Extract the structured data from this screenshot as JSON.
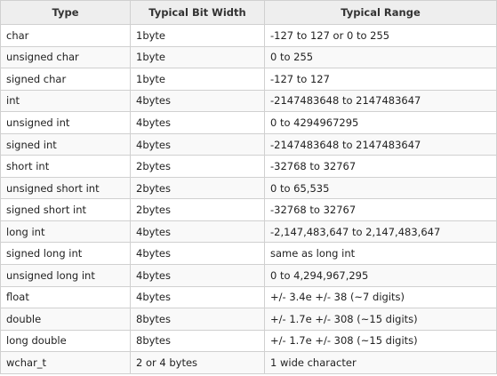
{
  "table": {
    "headers": [
      "Type",
      "Typical Bit Width",
      "Typical Range"
    ],
    "rows": [
      [
        "char",
        "1byte",
        "-127 to 127 or 0 to 255"
      ],
      [
        "unsigned char",
        "1byte",
        "0 to 255"
      ],
      [
        "signed char",
        "1byte",
        "-127 to 127"
      ],
      [
        "int",
        "4bytes",
        "-2147483648 to 2147483647"
      ],
      [
        "unsigned int",
        "4bytes",
        "0 to 4294967295"
      ],
      [
        "signed int",
        "4bytes",
        "-2147483648 to 2147483647"
      ],
      [
        "short int",
        "2bytes",
        "-32768 to 32767"
      ],
      [
        "unsigned short int",
        "2bytes",
        "0 to 65,535"
      ],
      [
        "signed short int",
        "2bytes",
        "-32768 to 32767"
      ],
      [
        "long int",
        "4bytes",
        "-2,147,483,647 to 2,147,483,647"
      ],
      [
        "signed long int",
        "4bytes",
        "same as long int"
      ],
      [
        "unsigned long int",
        "4bytes",
        "0 to 4,294,967,295"
      ],
      [
        "float",
        "4bytes",
        "+/- 3.4e +/- 38 (~7 digits)"
      ],
      [
        "double",
        "8bytes",
        "+/- 1.7e +/- 308 (~15 digits)"
      ],
      [
        "long double",
        "8bytes",
        "+/- 1.7e +/- 308 (~15 digits)"
      ],
      [
        "wchar_t",
        "2 or 4 bytes",
        "1 wide character"
      ]
    ]
  },
  "colors": {
    "header_bg": "#eeeeee",
    "border": "#d0d0d0",
    "alt_row_bg": "#f9f9f9",
    "text": "#222222"
  }
}
